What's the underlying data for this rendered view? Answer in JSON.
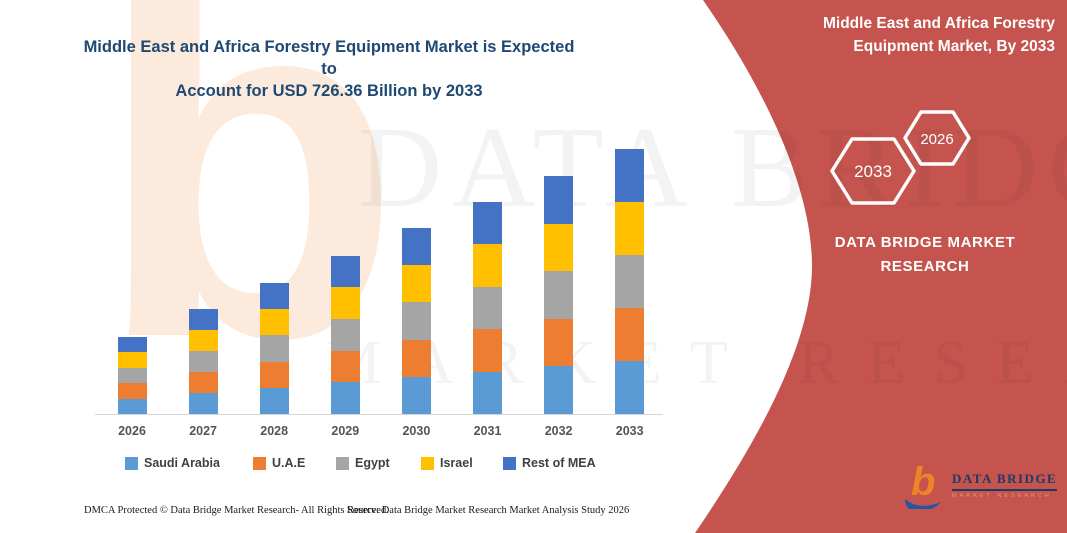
{
  "colors": {
    "panel_red": "#c5534e",
    "title_navy": "#1f4872",
    "axis_gray": "#d6d6d6",
    "label_gray": "#555555"
  },
  "header": {
    "title_line1": "Middle East and Africa Forestry Equipment Market is Expected to",
    "title_line2": "Account for USD 726.36 Billion by 2033"
  },
  "right_panel": {
    "title_line1": "Middle East and Africa Forestry",
    "title_line2": "Equipment Market, By 2033",
    "hex_back_year": "2033",
    "hex_front_year": "2026",
    "brand_line1": "DATA BRIDGE MARKET",
    "brand_line2": "RESEARCH"
  },
  "chart_data": {
    "type": "bar",
    "stacked": true,
    "title": "Middle East and Africa Forestry Equipment Market is Expected to Account for USD 726.36 Billion by 2033",
    "unit": "USD Billion (estimated from bar heights; 2033 total labeled 726.36)",
    "categories": [
      "2026",
      "2027",
      "2028",
      "2029",
      "2030",
      "2031",
      "2032",
      "2033"
    ],
    "series": [
      {
        "name": "Saudi Arabia",
        "color": "#5B9BD5",
        "values": [
          42.6,
          57.6,
          71.8,
          87.0,
          102.0,
          116.2,
          130.6,
          145.3
        ]
      },
      {
        "name": "U.A.E",
        "color": "#ED7D31",
        "values": [
          42.6,
          57.6,
          71.8,
          87.0,
          102.0,
          116.2,
          130.6,
          145.3
        ]
      },
      {
        "name": "Egypt",
        "color": "#A5A5A5",
        "values": [
          42.6,
          57.6,
          71.8,
          87.0,
          102.0,
          116.2,
          130.6,
          145.3
        ]
      },
      {
        "name": "Israel",
        "color": "#FFC000",
        "values": [
          42.6,
          57.6,
          71.8,
          87.0,
          102.0,
          116.2,
          130.6,
          145.3
        ]
      },
      {
        "name": "Rest of MEA",
        "color": "#4472C4",
        "values": [
          42.6,
          57.6,
          71.8,
          87.0,
          102.0,
          116.2,
          130.6,
          145.3
        ]
      }
    ],
    "totals": [
      213,
      288,
      359,
      435,
      510,
      581,
      653,
      726.36
    ],
    "ylim": [
      0,
      760
    ],
    "grid": false,
    "value_axis_visible": false,
    "legend_position": "bottom"
  },
  "watermarks": {
    "big_letter": "b",
    "row1": "DATA BRIDGE",
    "row2": "MARKET RESEARCH"
  },
  "logo": {
    "name": "DATA BRIDGE",
    "subtitle": "MARKET RESEARCH"
  },
  "footer": {
    "dmca": "DMCA Protected © Data Bridge Market Research-  All Rights Reserved.",
    "source": "Source: Data Bridge Market Research  Market Analysis Study 2026"
  }
}
